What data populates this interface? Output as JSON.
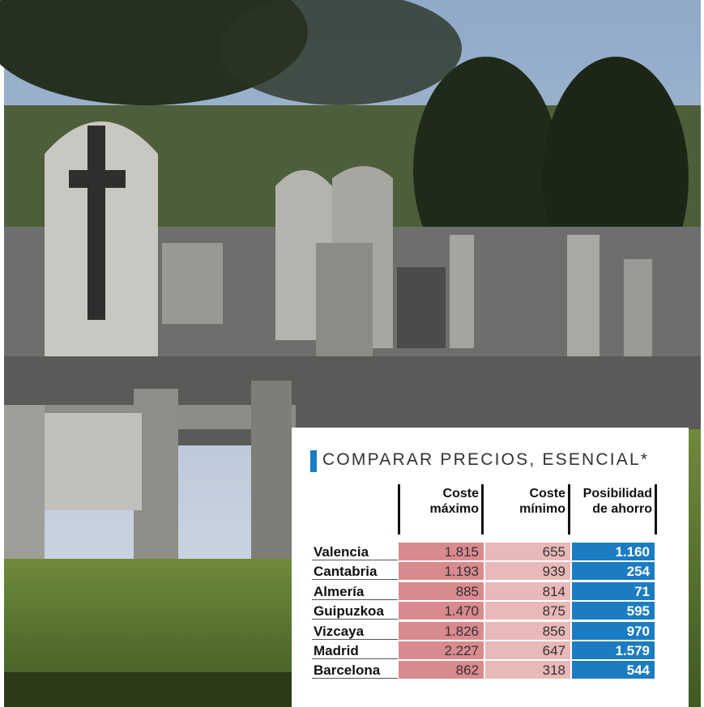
{
  "title": "COMPARAR PRECIOS, ESENCIAL*",
  "table": {
    "columns": [
      [
        "Coste",
        "máximo"
      ],
      [
        "Coste",
        "mínimo"
      ],
      [
        "Posibilidad",
        "de ahorro"
      ]
    ],
    "rows": [
      [
        "Valencia",
        "1.815",
        "655",
        "1.160"
      ],
      [
        "Cantabria",
        "1.193",
        "939",
        "254"
      ],
      [
        "Almería",
        "885",
        "814",
        "71"
      ],
      [
        "Guipuzkoa",
        "1.470",
        "875",
        "595"
      ],
      [
        "Vizcaya",
        "1.826",
        "856",
        "970"
      ],
      [
        "Madrid",
        "2.227",
        "647",
        "1.579"
      ],
      [
        "Barcelona",
        "862",
        "318",
        "544"
      ]
    ]
  }
}
